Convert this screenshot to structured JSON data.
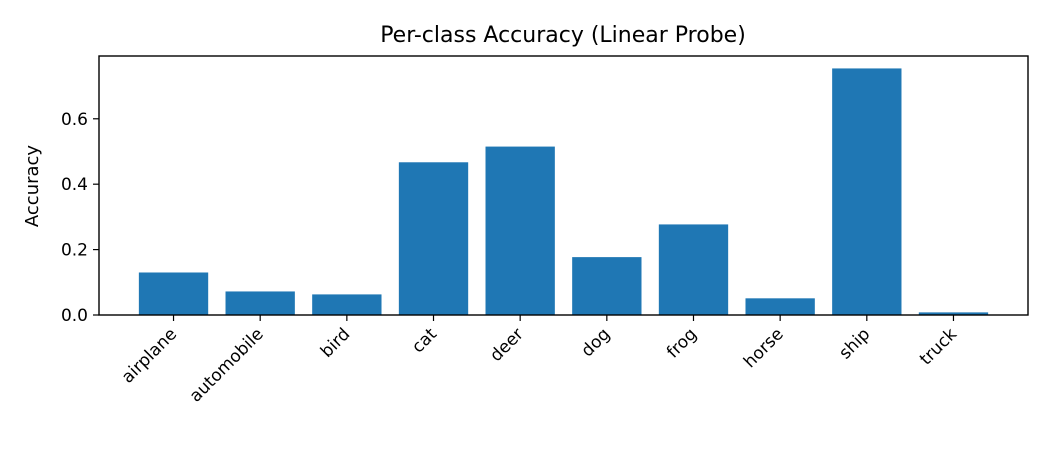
{
  "chart_data": {
    "type": "bar",
    "title": "Per-class Accuracy (Linear Probe)",
    "xlabel": "",
    "ylabel": "Accuracy",
    "categories": [
      "airplane",
      "automobile",
      "bird",
      "cat",
      "deer",
      "dog",
      "frog",
      "horse",
      "ship",
      "truck"
    ],
    "values": [
      0.13,
      0.072,
      0.063,
      0.467,
      0.515,
      0.177,
      0.277,
      0.051,
      0.754,
      0.008
    ],
    "yticks": [
      0.0,
      0.2,
      0.4,
      0.6
    ],
    "ytick_labels": [
      "0.0",
      "0.2",
      "0.4",
      "0.6"
    ],
    "ylim": [
      0,
      0.792
    ],
    "bar_color": "#1f77b4",
    "grid": false
  }
}
